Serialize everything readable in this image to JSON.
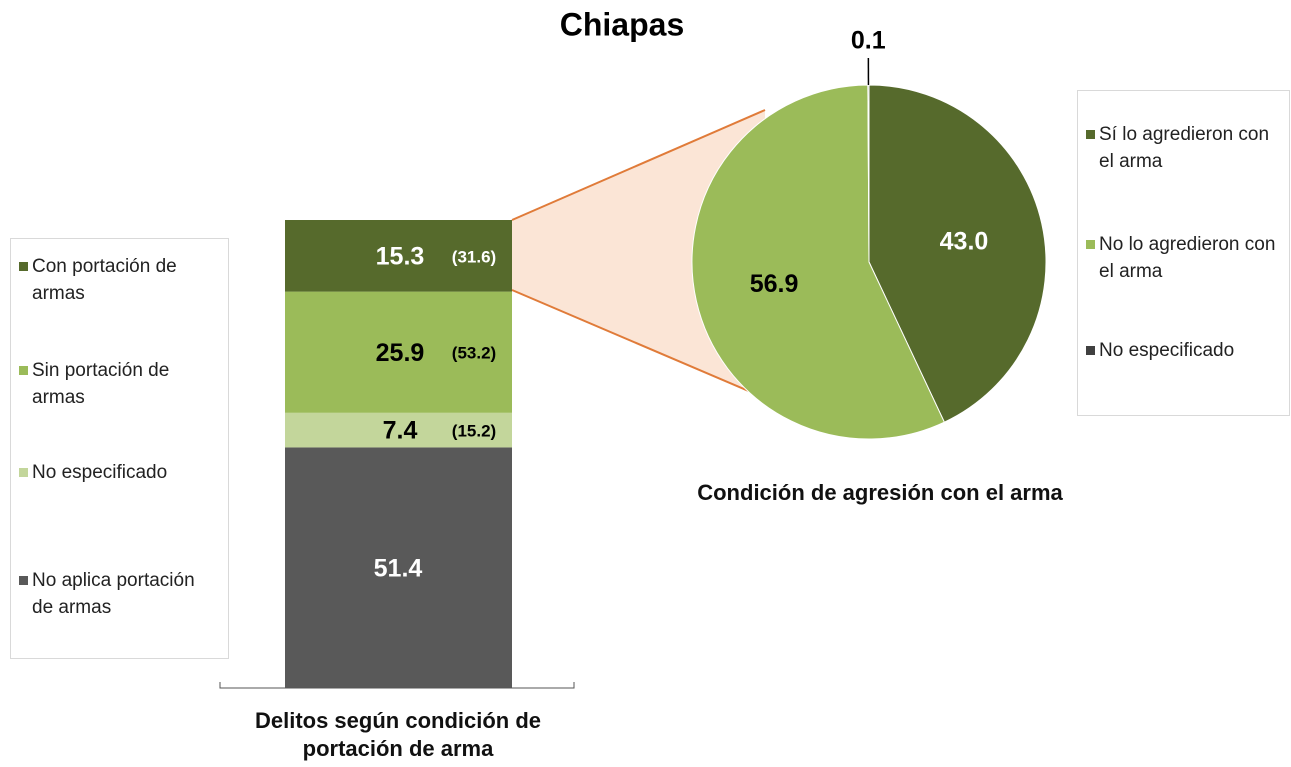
{
  "title": "Chiapas",
  "chart_data": [
    {
      "type": "stacked_bar",
      "xlabel": "Delitos según condición de portación de arma",
      "ylim": [
        0,
        100
      ],
      "series": [
        {
          "name": "Con portación de armas",
          "color": "#566a2c",
          "values": [
            15.3
          ],
          "share_labels": [
            "(31.6)"
          ],
          "label_color": "#ffffff"
        },
        {
          "name": "Sin portación de armas",
          "color": "#9bbb59",
          "values": [
            25.9
          ],
          "share_labels": [
            "(53.2)"
          ],
          "label_color": "#000000"
        },
        {
          "name": "No especificado",
          "color": "#c3d69b",
          "values": [
            7.4
          ],
          "share_labels": [
            "(15.2)"
          ],
          "label_color": "#000000"
        },
        {
          "name": "No aplica portación de armas",
          "color": "#595959",
          "values": [
            51.4
          ],
          "label_color": "#ffffff"
        }
      ]
    },
    {
      "type": "pie",
      "xlabel": "Condición de agresión con el arma",
      "categories": [
        "Sí lo agredieron con el arma",
        "No lo agredieron con el arma",
        "No especificado"
      ],
      "values": [
        43.0,
        56.9,
        0.1
      ],
      "value_labels": [
        "43.0",
        "56.9",
        "0.1"
      ],
      "colors": [
        "#566a2c",
        "#9bbb59",
        "#404040"
      ],
      "label_colors": [
        "#ffffff",
        "#000000",
        "#000000"
      ]
    }
  ]
}
